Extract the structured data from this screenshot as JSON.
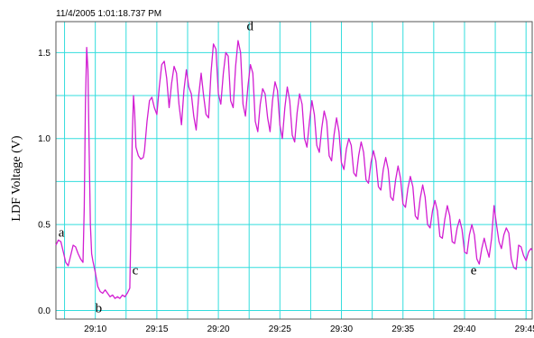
{
  "timestamp": "11/4/2005 1:01:18.737 PM",
  "colors": {
    "series": "#d21ed2",
    "grid": "#33dddd"
  },
  "chart_data": {
    "type": "line",
    "title": "",
    "ylabel": "LDF Voltage (V)",
    "xlabel": "",
    "xlim": [
      1746.8,
      1785.5
    ],
    "ylim": [
      -0.05,
      1.68
    ],
    "grid": true,
    "x_ticks": [
      {
        "value": 1750,
        "label": "29:10"
      },
      {
        "value": 1755,
        "label": "29:15"
      },
      {
        "value": 1760,
        "label": "29:20"
      },
      {
        "value": 1765,
        "label": "29:25"
      },
      {
        "value": 1770,
        "label": "29:30"
      },
      {
        "value": 1775,
        "label": "29:35"
      },
      {
        "value": 1780,
        "label": "29:40"
      },
      {
        "value": 1785,
        "label": "29:45"
      }
    ],
    "x_minor_grid": [
      1747.5,
      1752.5,
      1757.5,
      1762.5,
      1767.5,
      1772.5,
      1777.5,
      1782.5
    ],
    "y_ticks": [
      {
        "value": 0.0,
        "label": "0.0"
      },
      {
        "value": 0.5,
        "label": "0.5"
      },
      {
        "value": 1.0,
        "label": "1.0"
      },
      {
        "value": 1.5,
        "label": "1.5"
      }
    ],
    "y_minor_grid": [
      0.25,
      0.75,
      1.25
    ],
    "annotations": [
      {
        "text": "a",
        "x": 1747.0,
        "y": 0.43
      },
      {
        "text": "b",
        "x": 1750.0,
        "y": -0.01
      },
      {
        "text": "c",
        "x": 1753.0,
        "y": 0.21
      },
      {
        "text": "d",
        "x": 1762.3,
        "y": 1.63
      },
      {
        "text": "e",
        "x": 1780.5,
        "y": 0.21
      }
    ],
    "series": [
      {
        "points": [
          [
            1746.8,
            0.38
          ],
          [
            1747.0,
            0.41
          ],
          [
            1747.2,
            0.4
          ],
          [
            1747.4,
            0.34
          ],
          [
            1747.6,
            0.28
          ],
          [
            1747.8,
            0.26
          ],
          [
            1748.0,
            0.32
          ],
          [
            1748.2,
            0.38
          ],
          [
            1748.4,
            0.37
          ],
          [
            1748.6,
            0.33
          ],
          [
            1748.8,
            0.3
          ],
          [
            1749.0,
            0.28
          ],
          [
            1749.1,
            0.6
          ],
          [
            1749.2,
            1.2
          ],
          [
            1749.3,
            1.53
          ],
          [
            1749.4,
            1.4
          ],
          [
            1749.5,
            0.95
          ],
          [
            1749.6,
            0.5
          ],
          [
            1749.7,
            0.33
          ],
          [
            1749.8,
            0.29
          ],
          [
            1750.0,
            0.22
          ],
          [
            1750.2,
            0.14
          ],
          [
            1750.4,
            0.11
          ],
          [
            1750.6,
            0.1
          ],
          [
            1750.8,
            0.12
          ],
          [
            1751.0,
            0.1
          ],
          [
            1751.2,
            0.08
          ],
          [
            1751.4,
            0.09
          ],
          [
            1751.6,
            0.07
          ],
          [
            1751.8,
            0.08
          ],
          [
            1752.0,
            0.07
          ],
          [
            1752.2,
            0.09
          ],
          [
            1752.4,
            0.08
          ],
          [
            1752.6,
            0.1
          ],
          [
            1752.8,
            0.13
          ],
          [
            1752.9,
            0.5
          ],
          [
            1753.0,
            1.0
          ],
          [
            1753.1,
            1.25
          ],
          [
            1753.2,
            1.15
          ],
          [
            1753.3,
            0.95
          ],
          [
            1753.5,
            0.9
          ],
          [
            1753.7,
            0.88
          ],
          [
            1753.9,
            0.89
          ],
          [
            1754.0,
            0.93
          ],
          [
            1754.2,
            1.1
          ],
          [
            1754.4,
            1.22
          ],
          [
            1754.6,
            1.24
          ],
          [
            1754.8,
            1.18
          ],
          [
            1755.0,
            1.14
          ],
          [
            1755.2,
            1.3
          ],
          [
            1755.4,
            1.43
          ],
          [
            1755.6,
            1.45
          ],
          [
            1755.8,
            1.35
          ],
          [
            1756.0,
            1.18
          ],
          [
            1756.2,
            1.32
          ],
          [
            1756.4,
            1.42
          ],
          [
            1756.6,
            1.38
          ],
          [
            1756.8,
            1.2
          ],
          [
            1757.0,
            1.08
          ],
          [
            1757.2,
            1.28
          ],
          [
            1757.4,
            1.4
          ],
          [
            1757.6,
            1.3
          ],
          [
            1757.8,
            1.26
          ],
          [
            1758.0,
            1.13
          ],
          [
            1758.2,
            1.05
          ],
          [
            1758.4,
            1.25
          ],
          [
            1758.6,
            1.38
          ],
          [
            1758.8,
            1.25
          ],
          [
            1759.0,
            1.14
          ],
          [
            1759.2,
            1.12
          ],
          [
            1759.4,
            1.38
          ],
          [
            1759.6,
            1.55
          ],
          [
            1759.8,
            1.52
          ],
          [
            1760.0,
            1.26
          ],
          [
            1760.2,
            1.2
          ],
          [
            1760.4,
            1.38
          ],
          [
            1760.6,
            1.5
          ],
          [
            1760.8,
            1.48
          ],
          [
            1761.0,
            1.22
          ],
          [
            1761.2,
            1.18
          ],
          [
            1761.4,
            1.42
          ],
          [
            1761.6,
            1.57
          ],
          [
            1761.8,
            1.5
          ],
          [
            1762.0,
            1.2
          ],
          [
            1762.2,
            1.13
          ],
          [
            1762.4,
            1.3
          ],
          [
            1762.6,
            1.43
          ],
          [
            1762.8,
            1.38
          ],
          [
            1763.0,
            1.1
          ],
          [
            1763.2,
            1.04
          ],
          [
            1763.4,
            1.2
          ],
          [
            1763.6,
            1.29
          ],
          [
            1763.8,
            1.26
          ],
          [
            1764.0,
            1.12
          ],
          [
            1764.2,
            1.04
          ],
          [
            1764.4,
            1.22
          ],
          [
            1764.6,
            1.33
          ],
          [
            1764.8,
            1.28
          ],
          [
            1765.0,
            1.08
          ],
          [
            1765.2,
            1.0
          ],
          [
            1765.4,
            1.18
          ],
          [
            1765.6,
            1.3
          ],
          [
            1765.8,
            1.22
          ],
          [
            1766.0,
            1.02
          ],
          [
            1766.2,
            0.98
          ],
          [
            1766.4,
            1.15
          ],
          [
            1766.6,
            1.26
          ],
          [
            1766.8,
            1.2
          ],
          [
            1767.0,
            1.0
          ],
          [
            1767.2,
            0.95
          ],
          [
            1767.4,
            1.1
          ],
          [
            1767.6,
            1.22
          ],
          [
            1767.8,
            1.14
          ],
          [
            1768.0,
            0.96
          ],
          [
            1768.2,
            0.92
          ],
          [
            1768.4,
            1.06
          ],
          [
            1768.6,
            1.16
          ],
          [
            1768.8,
            1.1
          ],
          [
            1769.0,
            0.9
          ],
          [
            1769.2,
            0.87
          ],
          [
            1769.4,
            1.02
          ],
          [
            1769.6,
            1.12
          ],
          [
            1769.8,
            1.04
          ],
          [
            1770.0,
            0.86
          ],
          [
            1770.2,
            0.82
          ],
          [
            1770.4,
            0.94
          ],
          [
            1770.6,
            1.0
          ],
          [
            1770.8,
            0.96
          ],
          [
            1771.0,
            0.8
          ],
          [
            1771.2,
            0.78
          ],
          [
            1771.4,
            0.9
          ],
          [
            1771.6,
            0.98
          ],
          [
            1771.8,
            0.92
          ],
          [
            1772.0,
            0.76
          ],
          [
            1772.2,
            0.74
          ],
          [
            1772.4,
            0.86
          ],
          [
            1772.6,
            0.93
          ],
          [
            1772.8,
            0.87
          ],
          [
            1773.0,
            0.72
          ],
          [
            1773.2,
            0.7
          ],
          [
            1773.4,
            0.82
          ],
          [
            1773.6,
            0.89
          ],
          [
            1773.8,
            0.82
          ],
          [
            1774.0,
            0.66
          ],
          [
            1774.2,
            0.64
          ],
          [
            1774.4,
            0.76
          ],
          [
            1774.6,
            0.84
          ],
          [
            1774.8,
            0.77
          ],
          [
            1775.0,
            0.62
          ],
          [
            1775.2,
            0.6
          ],
          [
            1775.4,
            0.71
          ],
          [
            1775.6,
            0.78
          ],
          [
            1775.8,
            0.72
          ],
          [
            1776.0,
            0.55
          ],
          [
            1776.2,
            0.53
          ],
          [
            1776.4,
            0.65
          ],
          [
            1776.6,
            0.73
          ],
          [
            1776.8,
            0.66
          ],
          [
            1777.0,
            0.5
          ],
          [
            1777.2,
            0.48
          ],
          [
            1777.4,
            0.58
          ],
          [
            1777.6,
            0.64
          ],
          [
            1777.8,
            0.58
          ],
          [
            1778.0,
            0.43
          ],
          [
            1778.2,
            0.42
          ],
          [
            1778.4,
            0.53
          ],
          [
            1778.6,
            0.61
          ],
          [
            1778.8,
            0.55
          ],
          [
            1779.0,
            0.4
          ],
          [
            1779.2,
            0.39
          ],
          [
            1779.4,
            0.48
          ],
          [
            1779.6,
            0.53
          ],
          [
            1779.8,
            0.47
          ],
          [
            1780.0,
            0.34
          ],
          [
            1780.2,
            0.33
          ],
          [
            1780.4,
            0.44
          ],
          [
            1780.6,
            0.5
          ],
          [
            1780.8,
            0.44
          ],
          [
            1781.0,
            0.3
          ],
          [
            1781.2,
            0.27
          ],
          [
            1781.4,
            0.36
          ],
          [
            1781.6,
            0.42
          ],
          [
            1781.8,
            0.36
          ],
          [
            1782.0,
            0.31
          ],
          [
            1782.2,
            0.42
          ],
          [
            1782.4,
            0.61
          ],
          [
            1782.6,
            0.5
          ],
          [
            1782.8,
            0.4
          ],
          [
            1783.0,
            0.36
          ],
          [
            1783.2,
            0.44
          ],
          [
            1783.4,
            0.48
          ],
          [
            1783.6,
            0.45
          ],
          [
            1783.8,
            0.3
          ],
          [
            1784.0,
            0.25
          ],
          [
            1784.2,
            0.24
          ],
          [
            1784.4,
            0.38
          ],
          [
            1784.6,
            0.37
          ],
          [
            1784.8,
            0.32
          ],
          [
            1785.0,
            0.29
          ],
          [
            1785.2,
            0.34
          ],
          [
            1785.4,
            0.36
          ],
          [
            1785.5,
            0.35
          ]
        ]
      }
    ]
  }
}
